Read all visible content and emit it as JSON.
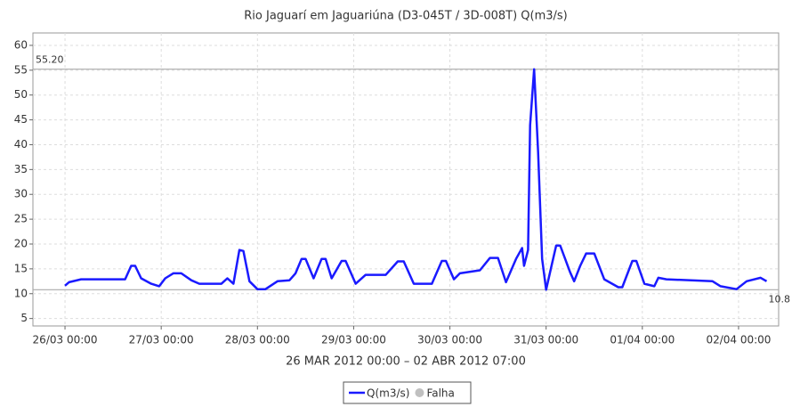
{
  "chart_data": {
    "type": "line",
    "title": "Rio Jaguarí em Jaguariúna (D3-045T / 3D-008T) Q(m3/s)",
    "x_label": "26 MAR 2012 00:00 – 02 ABR 2012 07:00",
    "x": [
      "26/03 00:00",
      "26/03 01:00",
      "26/03 04:00",
      "26/03 15:00",
      "26/03 16:30",
      "26/03 17:30",
      "26/03 19:00",
      "26/03 21:30",
      "26/03 23:30",
      "27/03 01:00",
      "27/03 03:00",
      "27/03 05:00",
      "27/03 07:30",
      "27/03 09:30",
      "27/03 15:00",
      "27/03 16:30",
      "27/03 18:00",
      "27/03 19:30",
      "27/03 20:30",
      "27/03 22:00",
      "28/03 00:00",
      "28/03 02:00",
      "28/03 05:00",
      "28/03 08:00",
      "28/03 09:30",
      "28/03 11:00",
      "28/03 12:00",
      "28/03 14:00",
      "28/03 16:00",
      "28/03 17:00",
      "28/03 18:30",
      "28/03 21:00",
      "28/03 22:00",
      "29/03 00:30",
      "29/03 03:00",
      "29/03 08:00",
      "29/03 11:00",
      "29/03 12:30",
      "29/03 15:00",
      "29/03 19:30",
      "29/03 22:00",
      "29/03 23:00",
      "30/03 01:00",
      "30/03 02:30",
      "30/03 07:30",
      "30/03 10:00",
      "30/03 12:00",
      "30/03 14:00",
      "30/03 16:30",
      "30/03 18:00",
      "30/03 18:30",
      "30/03 19:30",
      "30/03 20:00",
      "30/03 21:00",
      "30/03 22:00",
      "30/03 23:00",
      "31/03 00:00",
      "31/03 01:30",
      "31/03 02:30",
      "31/03 03:30",
      "31/03 06:00",
      "31/03 07:00",
      "31/03 08:30",
      "31/03 10:00",
      "31/03 12:00",
      "31/03 14:30",
      "31/03 18:00",
      "31/03 19:00",
      "31/03 21:30",
      "31/03 22:30",
      "01/04 00:30",
      "01/04 03:00",
      "01/04 04:00",
      "01/04 06:00",
      "01/04 17:30",
      "01/04 19:30",
      "01/04 23:30",
      "02/04 02:00",
      "02/04 05:30",
      "02/04 07:00"
    ],
    "series": [
      {
        "name": "Q(m3/s)",
        "color": "#1a1aff",
        "values": [
          11.6,
          12.3,
          12.9,
          12.9,
          15.6,
          15.6,
          13.1,
          12,
          11.5,
          13.1,
          14.1,
          14.1,
          12.7,
          12,
          12,
          13.1,
          12,
          18.8,
          18.6,
          12.5,
          10.9,
          10.9,
          12.5,
          12.7,
          14.1,
          17,
          17,
          13.1,
          17,
          17,
          13.1,
          16.6,
          16.6,
          12,
          13.8,
          13.8,
          16.5,
          16.5,
          12,
          12,
          16.6,
          16.6,
          12.9,
          14.1,
          14.7,
          17.2,
          17.2,
          12.3,
          17,
          19.2,
          15.6,
          18.8,
          43.9,
          55.2,
          38.5,
          17,
          10.8,
          16.1,
          19.7,
          19.7,
          14.3,
          12.5,
          15.6,
          18.1,
          18.1,
          12.9,
          11.3,
          11.3,
          16.6,
          16.6,
          12,
          11.5,
          13.2,
          12.9,
          12.5,
          11.5,
          10.9,
          12.5,
          13.2,
          12.5
        ]
      }
    ],
    "legend_extra": [
      {
        "name": "Falha",
        "color": "#c0c0c0"
      }
    ],
    "markers": [
      {
        "value": 55.2,
        "label": "55.20"
      },
      {
        "value": 10.8,
        "label": "10.8"
      }
    ],
    "xlim": [
      "25/03 16:00",
      "02/04 10:00"
    ],
    "xticks": [
      "26/03 00:00",
      "27/03 00:00",
      "28/03 00:00",
      "29/03 00:00",
      "30/03 00:00",
      "31/03 00:00",
      "01/04 00:00",
      "02/04 00:00"
    ],
    "ylim": [
      3.5,
      62.5
    ],
    "yticks": [
      5,
      10,
      15,
      20,
      25,
      30,
      35,
      40,
      45,
      50,
      55,
      60
    ],
    "grid": true
  }
}
